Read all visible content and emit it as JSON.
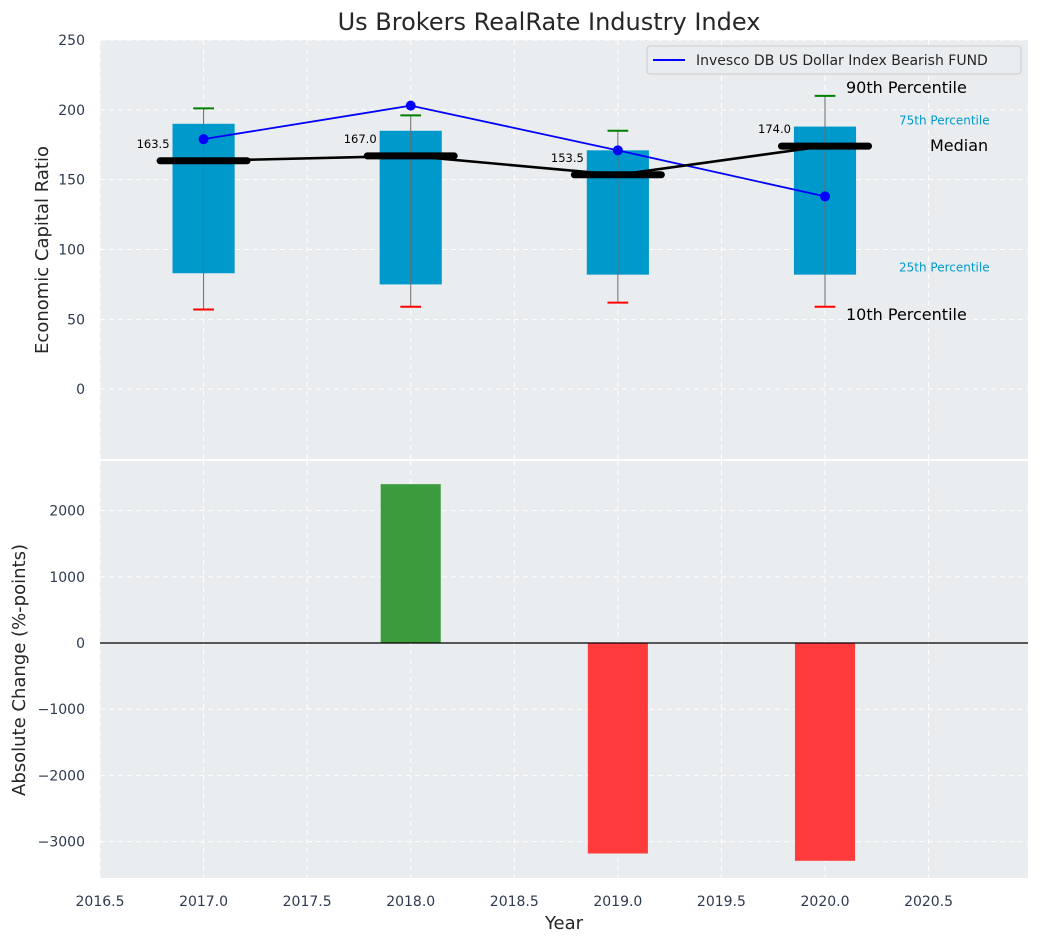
{
  "chart_data": [
    {
      "type": "box",
      "title": "Us Brokers RealRate Industry Index",
      "ylabel": "Economic Capital Ratio",
      "ylim": [
        -50,
        250
      ],
      "xlim": [
        2016.5,
        2020.98
      ],
      "yticks": [
        0,
        50,
        100,
        150,
        200,
        250
      ],
      "grid": true,
      "box_color": "#0099cc",
      "median_color": "#000000",
      "p90_color": "#008000",
      "p10_color": "#ff0000",
      "years": [
        2017,
        2018,
        2019,
        2020
      ],
      "p10": [
        57,
        59,
        62,
        59
      ],
      "p25": [
        83,
        75,
        82,
        82
      ],
      "median": [
        163.5,
        167.0,
        153.5,
        174.0
      ],
      "median_labels": [
        "163.5",
        "167.0",
        "153.5",
        "174.0"
      ],
      "p75": [
        190,
        185,
        171,
        188
      ],
      "p90": [
        201,
        196,
        185,
        210
      ],
      "series": [
        {
          "name": "Invesco DB US Dollar Index Bearish FUND",
          "color": "#0000ff",
          "values": [
            179,
            203,
            171,
            138
          ]
        }
      ],
      "legend_position": "top-right",
      "annotations": {
        "p90": "90th Percentile",
        "p75": "75th Percentile",
        "median": "Median",
        "p25": "25th Percentile",
        "p10": "10th Percentile"
      }
    },
    {
      "type": "bar",
      "ylabel": "Absolute Change (%-points)",
      "xlabel": "Year",
      "ylim": [
        -3550,
        2750
      ],
      "yticks": [
        -3000,
        -2000,
        -1000,
        0,
        1000,
        2000
      ],
      "xticks": [
        2016.5,
        2017.0,
        2017.5,
        2018.0,
        2018.5,
        2019.0,
        2019.5,
        2020.0,
        2020.5
      ],
      "xtick_labels": [
        "2016.5",
        "2017.0",
        "2017.5",
        "2018.0",
        "2018.5",
        "2019.0",
        "2019.5",
        "2020.0",
        "2020.5"
      ],
      "ytick_labels": [
        "−3000",
        "−2000",
        "−1000",
        "0",
        "1000",
        "2000"
      ],
      "grid": true,
      "positive_color": "#3c9b3c",
      "negative_color": "#ff3b3b",
      "x": [
        2018,
        2019,
        2020
      ],
      "values": [
        2400,
        -3180,
        -3290
      ]
    }
  ]
}
